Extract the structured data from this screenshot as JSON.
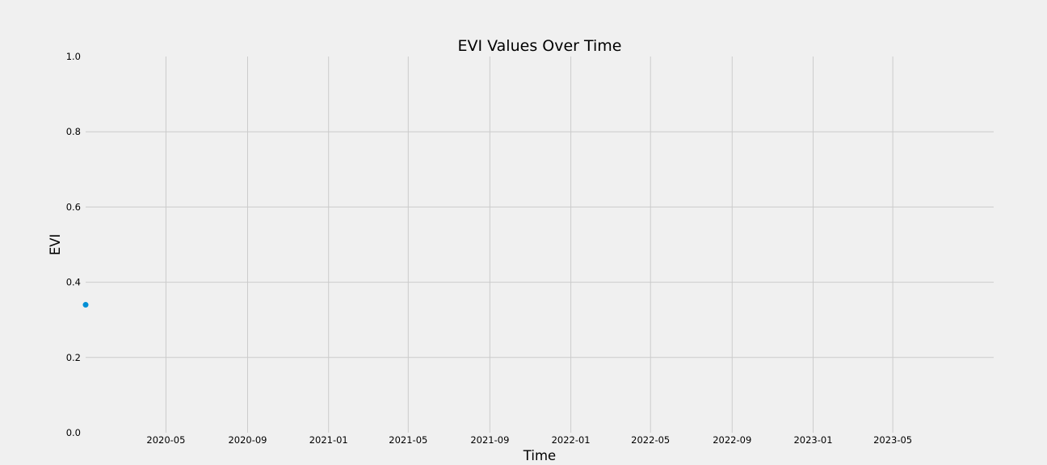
{
  "chart_data": {
    "type": "line",
    "title": "EVI Values Over Time",
    "xlabel": "Time",
    "ylabel": "EVI",
    "xlim": [
      "2020-01-01",
      "2023-09-30"
    ],
    "ylim": [
      0,
      1
    ],
    "x_ticks": [
      "2020-05",
      "2020-09",
      "2021-01",
      "2021-05",
      "2021-09",
      "2022-01",
      "2022-05",
      "2022-09",
      "2023-01",
      "2023-05"
    ],
    "y_ticks": [
      "0.0",
      "0.2",
      "0.4",
      "0.6",
      "0.8",
      "1.0"
    ],
    "grid": true,
    "series": [
      {
        "color": "#008fd5",
        "points": [
          {
            "x": "2020-01-01",
            "y": 0.34
          }
        ]
      }
    ]
  }
}
